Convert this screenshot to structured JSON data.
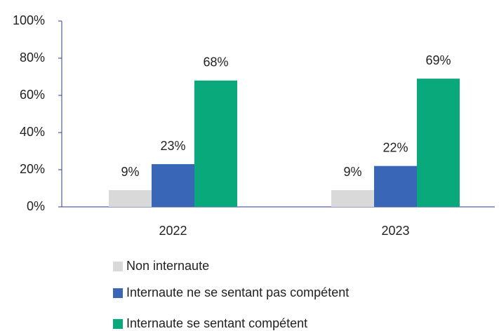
{
  "chart_data": {
    "type": "bar",
    "categories": [
      "2022",
      "2023"
    ],
    "series": [
      {
        "name": "Non internaute",
        "color": "#d9d9d9",
        "values": [
          9,
          9
        ],
        "value_labels": [
          "9%",
          "9%"
        ]
      },
      {
        "name": "Internaute ne se sentant pas compétent",
        "color": "#3a66b8",
        "values": [
          23,
          22
        ],
        "value_labels": [
          "23%",
          "22%"
        ]
      },
      {
        "name": "Internaute se sentant compétent",
        "color": "#0aa97c",
        "values": [
          68,
          69
        ],
        "value_labels": [
          "68%",
          "69%"
        ]
      }
    ],
    "ylim": [
      0,
      100
    ],
    "yticks": [
      {
        "value": 0,
        "label": "0%"
      },
      {
        "value": 20,
        "label": "20%"
      },
      {
        "value": 40,
        "label": "40%"
      },
      {
        "value": 60,
        "label": "60%"
      },
      {
        "value": 80,
        "label": "80%"
      },
      {
        "value": 100,
        "label": "100%"
      }
    ],
    "grid": false,
    "legend": "bottom"
  }
}
